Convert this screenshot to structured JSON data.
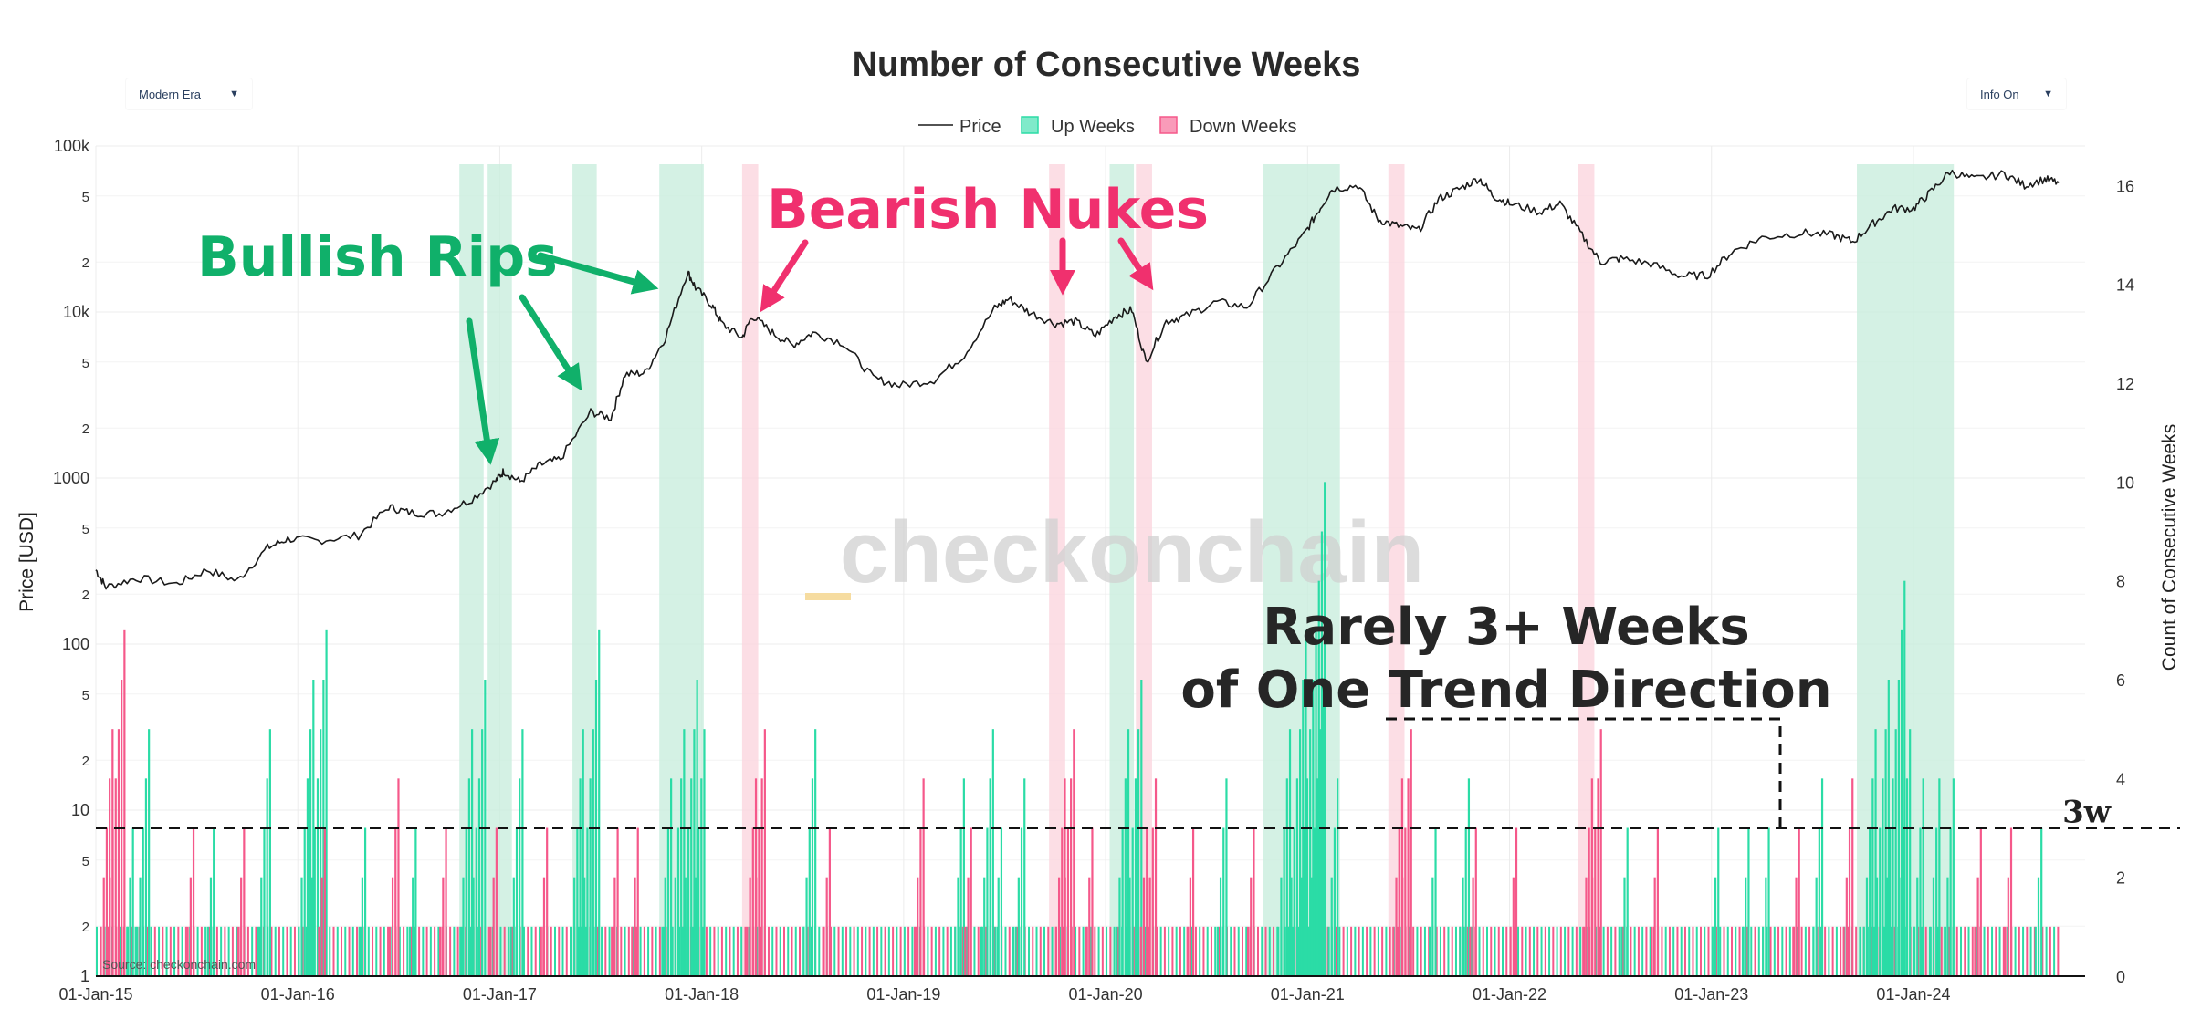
{
  "controls": {
    "era_dropdown": {
      "selected": "Modern Era"
    },
    "info_dropdown": {
      "selected": "Info On"
    }
  },
  "colors": {
    "up": "#2bdca6",
    "down": "#f5588a",
    "up_shade": "#c9eedd",
    "down_shade": "#fbd6df",
    "bullish_annot": "#10b06a",
    "bearish_annot": "#f0306e",
    "price_line": "#1a1a1a"
  },
  "chart_data": {
    "type": "bar",
    "title": "Number of Consecutive Weeks",
    "legend": {
      "position": "top-center",
      "entries": [
        {
          "label": "Price",
          "kind": "line"
        },
        {
          "label": "Up Weeks",
          "kind": "up"
        },
        {
          "label": "Down Weeks",
          "kind": "down"
        }
      ]
    },
    "x_ticks": [
      "01-Jan-15",
      "01-Jan-16",
      "01-Jan-17",
      "01-Jan-18",
      "01-Jan-19",
      "01-Jan-20",
      "01-Jan-21",
      "01-Jan-22",
      "01-Jan-23",
      "01-Jan-24"
    ],
    "x_range": [
      2015.0,
      2024.85
    ],
    "y_left": {
      "label": "Price [USD]",
      "scale": "log",
      "range": [
        1,
        100000
      ],
      "major_ticks": [
        {
          "value": 1,
          "label": "1"
        },
        {
          "value": 10,
          "label": "10"
        },
        {
          "value": 100,
          "label": "100"
        },
        {
          "value": 1000,
          "label": "1000"
        },
        {
          "value": 10000,
          "label": "10k"
        },
        {
          "value": 100000,
          "label": "100k"
        }
      ],
      "minor_ticks": [
        {
          "value": 2,
          "label": "2"
        },
        {
          "value": 5,
          "label": "5"
        },
        {
          "value": 20,
          "label": "2"
        },
        {
          "value": 50,
          "label": "5"
        },
        {
          "value": 200,
          "label": "2"
        },
        {
          "value": 500,
          "label": "5"
        },
        {
          "value": 2000,
          "label": "2"
        },
        {
          "value": 5000,
          "label": "5"
        },
        {
          "value": 20000,
          "label": "2"
        },
        {
          "value": 50000,
          "label": "5"
        }
      ]
    },
    "y_right": {
      "label": "Count of Consecutive Weeks",
      "range": [
        0,
        16.8
      ],
      "ticks": [
        0,
        2,
        4,
        6,
        8,
        10,
        12,
        14,
        16
      ]
    },
    "threshold": {
      "value": 3,
      "label": "3w"
    },
    "price_series": {
      "name": "Price",
      "points": [
        [
          2015.0,
          280
        ],
        [
          2015.05,
          220
        ],
        [
          2015.2,
          250
        ],
        [
          2015.4,
          230
        ],
        [
          2015.55,
          280
        ],
        [
          2015.7,
          240
        ],
        [
          2015.85,
          380
        ],
        [
          2015.95,
          430
        ],
        [
          2016.1,
          420
        ],
        [
          2016.3,
          450
        ],
        [
          2016.45,
          670
        ],
        [
          2016.55,
          620
        ],
        [
          2016.7,
          610
        ],
        [
          2016.85,
          730
        ],
        [
          2016.98,
          960
        ],
        [
          2017.02,
          1100
        ],
        [
          2017.1,
          950
        ],
        [
          2017.2,
          1200
        ],
        [
          2017.3,
          1300
        ],
        [
          2017.45,
          2500
        ],
        [
          2017.55,
          2300
        ],
        [
          2017.62,
          4200
        ],
        [
          2017.72,
          4300
        ],
        [
          2017.82,
          7000
        ],
        [
          2017.93,
          17500
        ],
        [
          2017.97,
          14000
        ],
        [
          2018.05,
          11000
        ],
        [
          2018.1,
          8500
        ],
        [
          2018.2,
          7000
        ],
        [
          2018.25,
          9500
        ],
        [
          2018.35,
          7500
        ],
        [
          2018.45,
          6300
        ],
        [
          2018.55,
          7500
        ],
        [
          2018.7,
          6500
        ],
        [
          2018.85,
          4000
        ],
        [
          2018.98,
          3600
        ],
        [
          2019.15,
          3900
        ],
        [
          2019.3,
          5500
        ],
        [
          2019.45,
          10500
        ],
        [
          2019.52,
          12000
        ],
        [
          2019.62,
          10000
        ],
        [
          2019.75,
          8500
        ],
        [
          2019.85,
          8800
        ],
        [
          2019.95,
          7200
        ],
        [
          2020.05,
          9500
        ],
        [
          2020.13,
          10300
        ],
        [
          2020.2,
          5000
        ],
        [
          2020.3,
          8800
        ],
        [
          2020.4,
          9500
        ],
        [
          2020.55,
          11500
        ],
        [
          2020.7,
          10700
        ],
        [
          2020.85,
          18500
        ],
        [
          2020.98,
          29000
        ],
        [
          2021.05,
          40000
        ],
        [
          2021.12,
          55000
        ],
        [
          2021.25,
          58000
        ],
        [
          2021.35,
          36000
        ],
        [
          2021.45,
          33000
        ],
        [
          2021.55,
          31000
        ],
        [
          2021.65,
          48000
        ],
        [
          2021.75,
          55000
        ],
        [
          2021.85,
          64000
        ],
        [
          2021.92,
          50000
        ],
        [
          2022.0,
          45000
        ],
        [
          2022.15,
          40000
        ],
        [
          2022.25,
          45000
        ],
        [
          2022.35,
          30000
        ],
        [
          2022.45,
          20000
        ],
        [
          2022.55,
          21000
        ],
        [
          2022.7,
          19500
        ],
        [
          2022.85,
          16500
        ],
        [
          2022.98,
          16600
        ],
        [
          2023.1,
          23000
        ],
        [
          2023.25,
          28000
        ],
        [
          2023.45,
          30000
        ],
        [
          2023.6,
          29000
        ],
        [
          2023.7,
          26500
        ],
        [
          2023.8,
          34000
        ],
        [
          2023.9,
          42000
        ],
        [
          2024.0,
          42000
        ],
        [
          2024.08,
          52000
        ],
        [
          2024.18,
          70000
        ],
        [
          2024.3,
          63000
        ],
        [
          2024.45,
          68000
        ],
        [
          2024.55,
          58000
        ],
        [
          2024.65,
          63000
        ],
        [
          2024.72,
          60000
        ]
      ]
    },
    "up_shade_regions": [
      {
        "x0": 2016.8,
        "x1": 2016.92
      },
      {
        "x0": 2016.94,
        "x1": 2017.06
      },
      {
        "x0": 2017.36,
        "x1": 2017.48
      },
      {
        "x0": 2017.79,
        "x1": 2018.01
      },
      {
        "x0": 2020.02,
        "x1": 2020.14
      },
      {
        "x0": 2020.78,
        "x1": 2021.16
      },
      {
        "x0": 2023.72,
        "x1": 2024.2
      }
    ],
    "down_shade_regions": [
      {
        "x0": 2018.2,
        "x1": 2018.28
      },
      {
        "x0": 2019.72,
        "x1": 2019.8
      },
      {
        "x0": 2020.15,
        "x1": 2020.23
      },
      {
        "x0": 2021.4,
        "x1": 2021.48
      },
      {
        "x0": 2022.34,
        "x1": 2022.42
      }
    ],
    "up_spikes": [
      [
        2015.15,
        3
      ],
      [
        2015.2,
        5
      ],
      [
        2015.55,
        3
      ],
      [
        2015.8,
        5
      ],
      [
        2016.0,
        6
      ],
      [
        2016.05,
        7
      ],
      [
        2016.3,
        3
      ],
      [
        2016.55,
        3
      ],
      [
        2016.8,
        5
      ],
      [
        2016.85,
        6
      ],
      [
        2017.05,
        5
      ],
      [
        2017.35,
        5
      ],
      [
        2017.4,
        7
      ],
      [
        2017.8,
        4
      ],
      [
        2017.85,
        5
      ],
      [
        2017.9,
        6
      ],
      [
        2017.95,
        5
      ],
      [
        2018.5,
        5
      ],
      [
        2019.25,
        4
      ],
      [
        2019.38,
        5
      ],
      [
        2019.45,
        3
      ],
      [
        2019.55,
        4
      ],
      [
        2020.05,
        5
      ],
      [
        2020.1,
        6
      ],
      [
        2020.55,
        4
      ],
      [
        2020.85,
        5
      ],
      [
        2020.9,
        7
      ],
      [
        2020.95,
        10
      ],
      [
        2021.0,
        6
      ],
      [
        2021.1,
        4
      ],
      [
        2021.6,
        3
      ],
      [
        2021.75,
        4
      ],
      [
        2022.55,
        3
      ],
      [
        2023.0,
        3
      ],
      [
        2023.15,
        3
      ],
      [
        2023.25,
        3
      ],
      [
        2023.5,
        4
      ],
      [
        2023.75,
        5
      ],
      [
        2023.8,
        6
      ],
      [
        2023.85,
        8
      ],
      [
        2023.92,
        5
      ],
      [
        2024.0,
        4
      ],
      [
        2024.08,
        4
      ],
      [
        2024.15,
        4
      ],
      [
        2024.6,
        3
      ]
    ],
    "down_spikes": [
      [
        2015.02,
        5
      ],
      [
        2015.05,
        7
      ],
      [
        2015.45,
        3
      ],
      [
        2015.7,
        3
      ],
      [
        2016.1,
        3
      ],
      [
        2016.45,
        4
      ],
      [
        2016.7,
        3
      ],
      [
        2016.95,
        3
      ],
      [
        2017.2,
        3
      ],
      [
        2017.55,
        3
      ],
      [
        2017.65,
        3
      ],
      [
        2018.22,
        4
      ],
      [
        2018.25,
        5
      ],
      [
        2018.6,
        3
      ],
      [
        2019.05,
        4
      ],
      [
        2019.3,
        3
      ],
      [
        2019.75,
        4
      ],
      [
        2019.78,
        5
      ],
      [
        2019.9,
        3
      ],
      [
        2020.17,
        3
      ],
      [
        2020.2,
        4
      ],
      [
        2020.4,
        3
      ],
      [
        2020.7,
        3
      ],
      [
        2021.42,
        4
      ],
      [
        2021.45,
        5
      ],
      [
        2021.8,
        3
      ],
      [
        2022.0,
        3
      ],
      [
        2022.36,
        4
      ],
      [
        2022.39,
        5
      ],
      [
        2022.7,
        3
      ],
      [
        2023.4,
        3
      ],
      [
        2023.65,
        4
      ],
      [
        2024.3,
        3
      ],
      [
        2024.45,
        3
      ]
    ],
    "annotations": {
      "bullish": "Bullish Rips",
      "bearish": "Bearish Nukes",
      "rarely_line1": "Rarely 3+ Weeks",
      "rarely_line2": "of One Trend Direction",
      "watermark": "checkonchain",
      "source": "Source: checkonchain.com"
    }
  }
}
